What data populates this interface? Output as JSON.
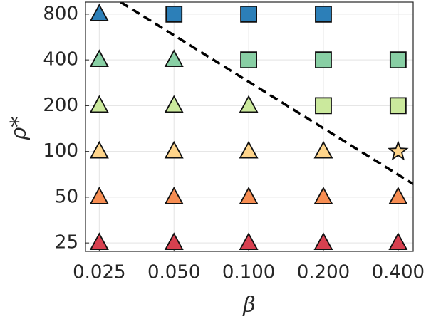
{
  "chart_data": {
    "type": "scatter",
    "xlabel": "β",
    "ylabel": "ρ*",
    "xscale": "log",
    "yscale": "log",
    "grid": true,
    "xlim": [
      0.022,
      0.46
    ],
    "ylim": [
      22,
      960
    ],
    "xticks": [
      0.025,
      {
        "value": 0.05,
        "label": "0.050"
      },
      {
        "value": 0.1,
        "label": "0.100"
      },
      {
        "value": 0.2,
        "label": "0.200"
      },
      {
        "value": 0.4,
        "label": "0.400"
      }
    ],
    "yticks": [
      25,
      50,
      100,
      200,
      400,
      800
    ],
    "series": [
      {
        "color": "#2c7fb8",
        "x": [
          0.025,
          0.05,
          0.1,
          0.2
        ],
        "values": [
          800,
          800,
          800,
          800
        ],
        "markers": [
          "triangle",
          "square",
          "square",
          "square"
        ]
      },
      {
        "color": "#88cfa4",
        "x": [
          0.025,
          0.05,
          0.1,
          0.2,
          0.4
        ],
        "values": [
          400,
          400,
          400,
          400,
          400
        ],
        "markers": [
          "triangle",
          "triangle",
          "square",
          "square",
          "square"
        ]
      },
      {
        "color": "#cbe99d",
        "x": [
          0.025,
          0.05,
          0.1,
          0.2,
          0.4
        ],
        "values": [
          200,
          200,
          200,
          200,
          200
        ],
        "markers": [
          "triangle",
          "triangle",
          "triangle",
          "square",
          "square"
        ]
      },
      {
        "color": "#fed48a",
        "x": [
          0.025,
          0.05,
          0.1,
          0.2,
          0.4
        ],
        "values": [
          100,
          100,
          100,
          100,
          100
        ],
        "markers": [
          "triangle",
          "triangle",
          "triangle",
          "triangle",
          "star"
        ]
      },
      {
        "color": "#f68d52",
        "x": [
          0.025,
          0.05,
          0.1,
          0.2,
          0.4
        ],
        "values": [
          50,
          50,
          50,
          50,
          50
        ],
        "markers": [
          "triangle",
          "triangle",
          "triangle",
          "triangle",
          "triangle"
        ]
      },
      {
        "color": "#d7404f",
        "x": [
          0.025,
          0.05,
          0.1,
          0.2,
          0.4
        ],
        "values": [
          25,
          25,
          25,
          25,
          25
        ],
        "markers": [
          "triangle",
          "triangle",
          "triangle",
          "triangle",
          "triangle"
        ]
      }
    ],
    "boundary": {
      "x": [
        0.0305,
        0.46
      ],
      "values": [
        960,
        61
      ],
      "color": "#000000",
      "style": "dashed"
    }
  }
}
